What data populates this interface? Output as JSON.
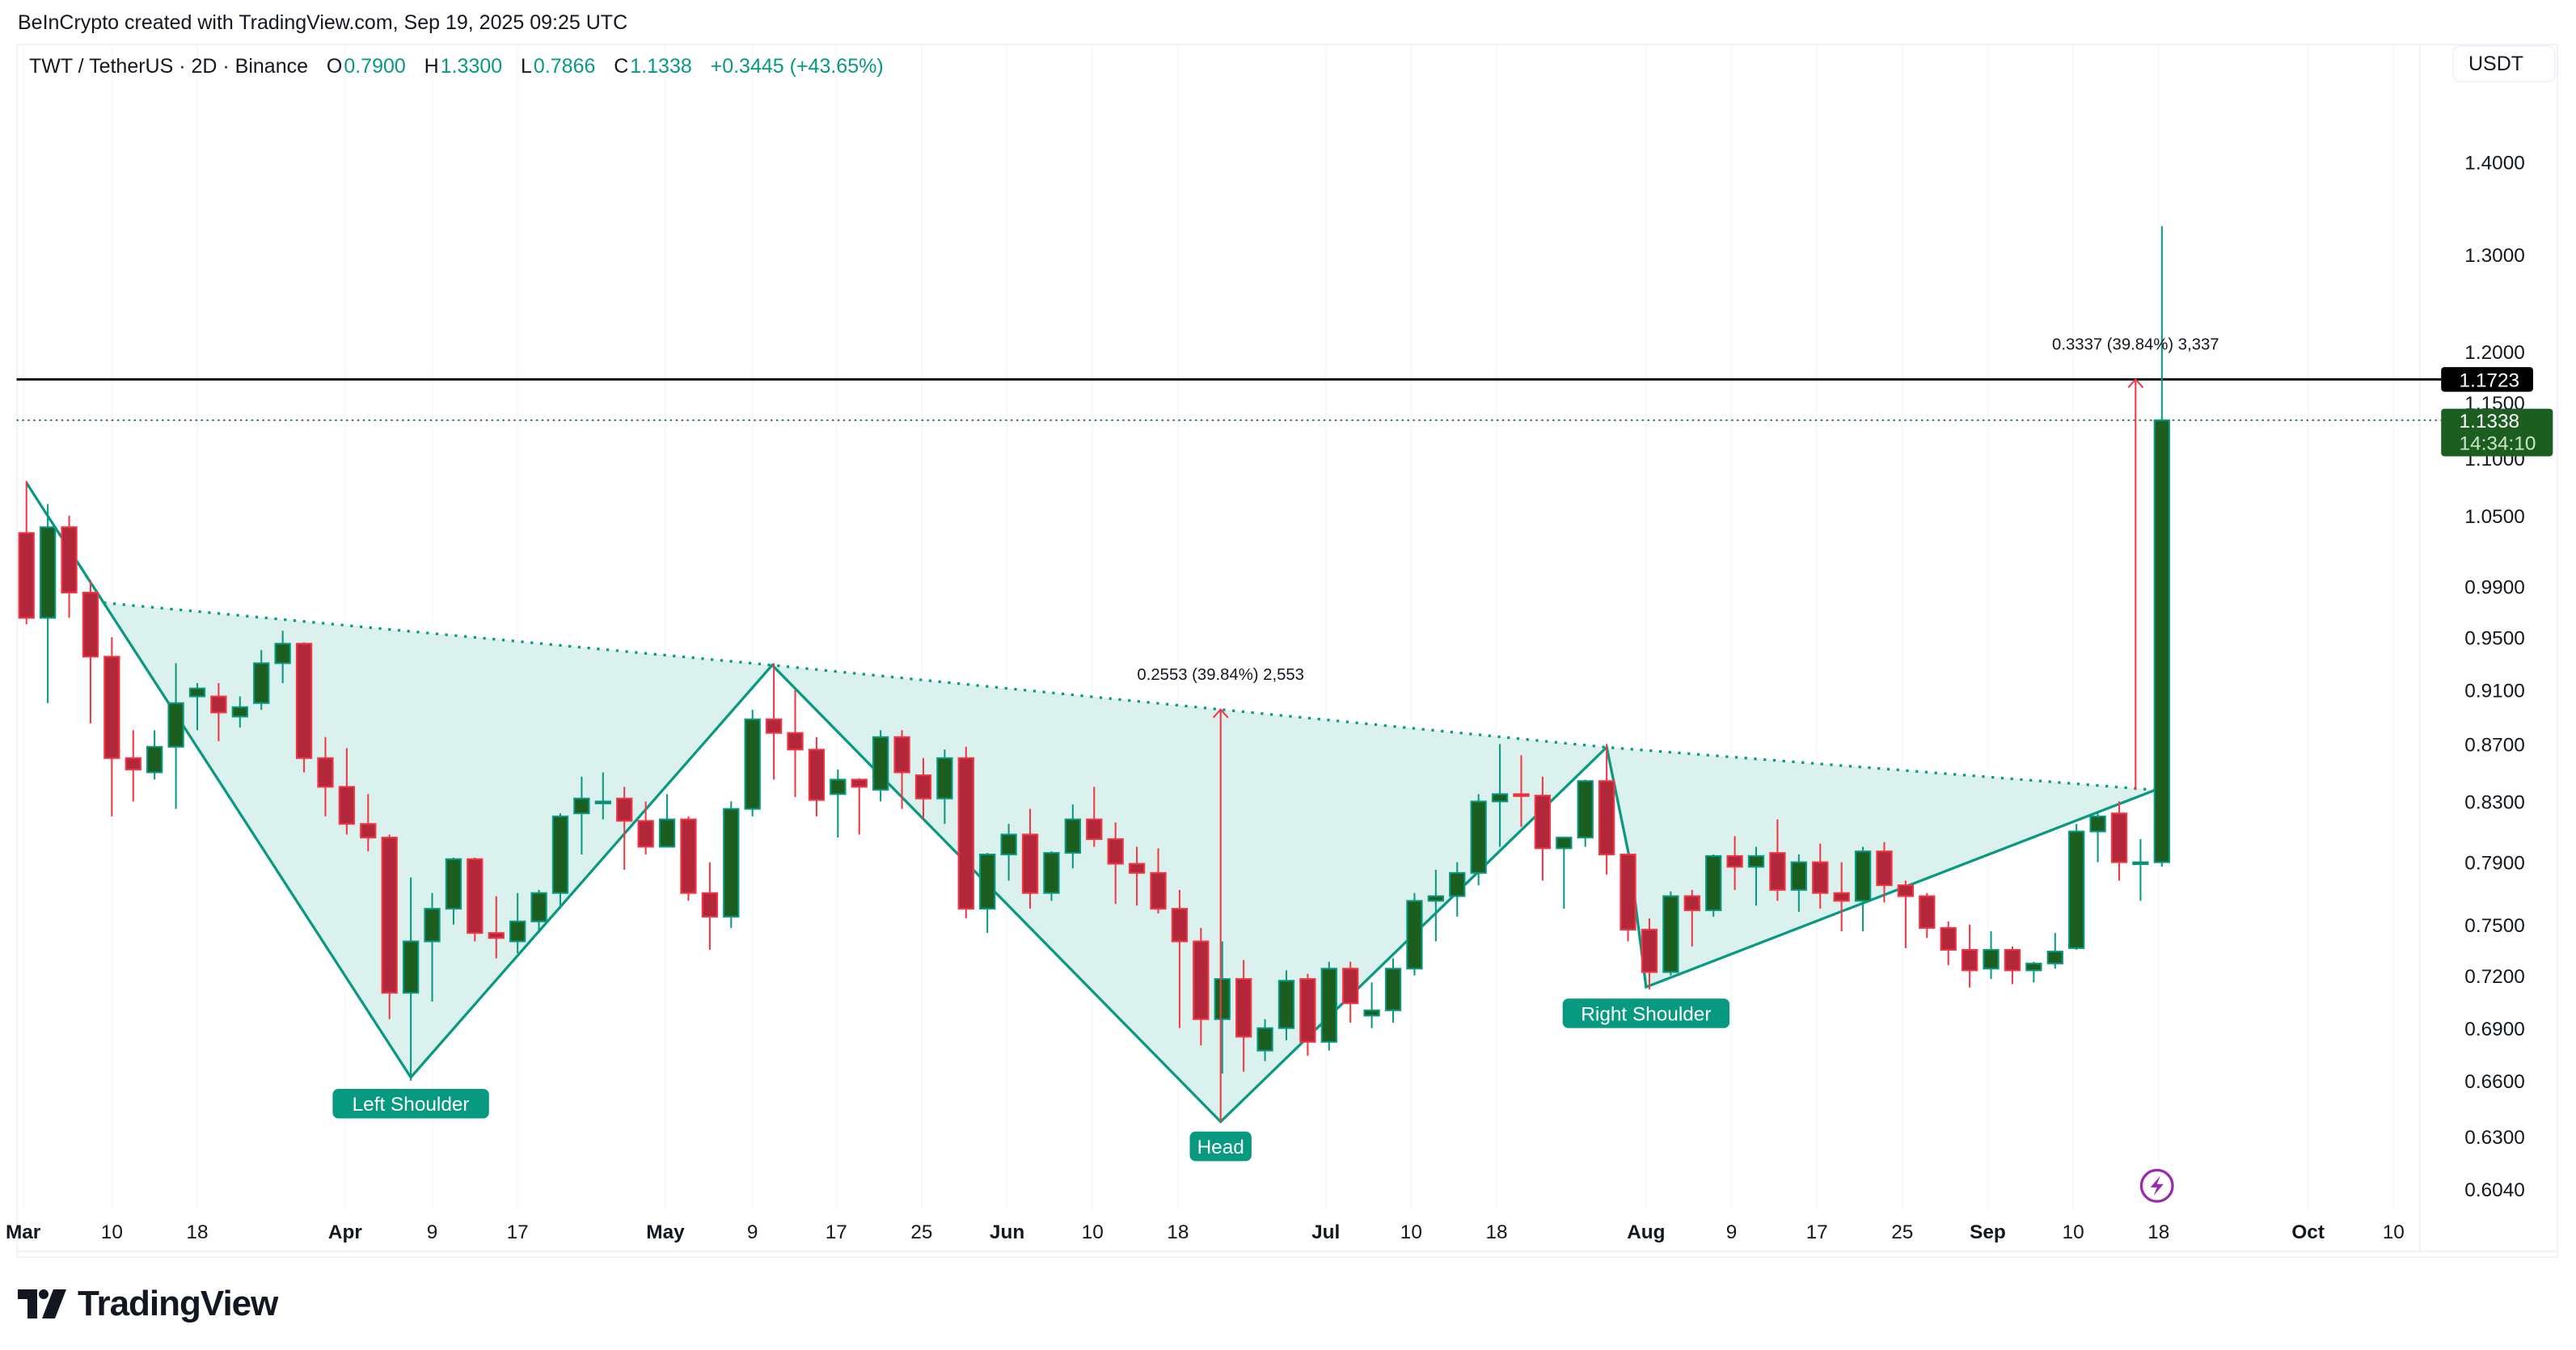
{
  "attribution": "BeInCrypto created with TradingView.com, Sep 19, 2025 09:25 UTC",
  "legend": {
    "symbol": "TWT / TetherUS · 2D · Binance",
    "o_label": "O",
    "o": "0.7900",
    "h_label": "H",
    "h": "1.3300",
    "l_label": "L",
    "l": "0.7866",
    "c_label": "C",
    "c": "1.1338",
    "change": "+0.3445 (+43.65%)"
  },
  "currency_button": "USDT",
  "logo": {
    "text": "TradingView"
  },
  "colors": {
    "up_body": "#1b5e20",
    "up_border": "#089981",
    "down_body": "#b2283a",
    "down_border": "#f23645",
    "pattern_fill": "#d9f0ec",
    "pattern_line": "#089981",
    "measure": "#f23645",
    "resistance": "#000000",
    "price_badge": "#1b5e20",
    "lightning": "#9c27b0"
  },
  "price_badges": {
    "resistance": "1.1723",
    "last_price": "1.1338",
    "countdown": "14:34:10"
  },
  "annotations": {
    "left_shoulder": "Left Shoulder",
    "head": "Head",
    "right_shoulder": "Right Shoulder",
    "measure_1": "0.2553 (39.84%) 2,553",
    "measure_2": "0.3337 (39.84%) 3,337"
  },
  "chart_data": {
    "type": "candlestick",
    "title": "TWT / TetherUS · 2D · Binance",
    "xlabel": "",
    "ylabel": "USDT",
    "y_scale": "log",
    "ylim": [
      0.59,
      1.45
    ],
    "y_ticks": [
      {
        "v": 1.4,
        "label": "1.4000",
        "y": 98.5
      },
      {
        "v": 1.3,
        "label": "1.3000",
        "y": 155
      },
      {
        "v": 1.2,
        "label": "1.2000",
        "y": 214
      },
      {
        "v": 1.15,
        "label": "1.1500",
        "y": 245
      },
      {
        "v": 1.1,
        "label": "1.1000",
        "y": 279
      },
      {
        "v": 1.05,
        "label": "1.0500",
        "y": 314
      },
      {
        "v": 0.99,
        "label": "0.9900",
        "y": 357
      },
      {
        "v": 0.95,
        "label": "0.9500",
        "y": 388
      },
      {
        "v": 0.91,
        "label": "0.9100",
        "y": 420
      },
      {
        "v": 0.87,
        "label": "0.8700",
        "y": 453
      },
      {
        "v": 0.83,
        "label": "0.8300",
        "y": 488
      },
      {
        "v": 0.79,
        "label": "0.7900",
        "y": 525
      },
      {
        "v": 0.75,
        "label": "0.7500",
        "y": 563
      },
      {
        "v": 0.72,
        "label": "0.7200",
        "y": 594
      },
      {
        "v": 0.69,
        "label": "0.6900",
        "y": 626
      },
      {
        "v": 0.66,
        "label": "0.6600",
        "y": 658
      },
      {
        "v": 0.63,
        "label": "0.6300",
        "y": 692
      },
      {
        "v": 0.604,
        "label": "0.6040",
        "y": 724
      }
    ],
    "x_ticks": [
      {
        "label": "Mar",
        "x": 14,
        "bold": true
      },
      {
        "label": "10",
        "x": 68
      },
      {
        "label": "18",
        "x": 120
      },
      {
        "label": "Apr",
        "x": 210,
        "bold": true
      },
      {
        "label": "9",
        "x": 263
      },
      {
        "label": "17",
        "x": 315
      },
      {
        "label": "May",
        "x": 405,
        "bold": true
      },
      {
        "label": "9",
        "x": 458
      },
      {
        "label": "17",
        "x": 509
      },
      {
        "label": "25",
        "x": 561
      },
      {
        "label": "Jun",
        "x": 613,
        "bold": true
      },
      {
        "label": "10",
        "x": 665
      },
      {
        "label": "18",
        "x": 717
      },
      {
        "label": "Jul",
        "x": 807,
        "bold": true
      },
      {
        "label": "10",
        "x": 859
      },
      {
        "label": "18",
        "x": 911
      },
      {
        "label": "Aug",
        "x": 1002,
        "bold": true
      },
      {
        "label": "9",
        "x": 1054
      },
      {
        "label": "17",
        "x": 1106
      },
      {
        "label": "25",
        "x": 1158
      },
      {
        "label": "Sep",
        "x": 1210,
        "bold": true
      },
      {
        "label": "10",
        "x": 1262
      },
      {
        "label": "18",
        "x": 1314
      },
      {
        "label": "Oct",
        "x": 1405,
        "bold": true
      },
      {
        "label": "10",
        "x": 1457
      }
    ],
    "candles": [
      {
        "x": 16,
        "o": 1.035,
        "h": 1.08,
        "l": 0.96,
        "c": 0.965
      },
      {
        "x": 29,
        "o": 0.965,
        "h": 1.06,
        "l": 0.9,
        "c": 1.04
      },
      {
        "x": 42,
        "o": 1.04,
        "h": 1.05,
        "l": 0.965,
        "c": 0.985
      },
      {
        "x": 55,
        "o": 0.985,
        "h": 0.995,
        "l": 0.885,
        "c": 0.935
      },
      {
        "x": 68,
        "o": 0.935,
        "h": 0.95,
        "l": 0.82,
        "c": 0.86
      },
      {
        "x": 81,
        "o": 0.86,
        "h": 0.88,
        "l": 0.83,
        "c": 0.852
      },
      {
        "x": 94,
        "o": 0.85,
        "h": 0.88,
        "l": 0.845,
        "c": 0.868
      },
      {
        "x": 107,
        "o": 0.868,
        "h": 0.93,
        "l": 0.825,
        "c": 0.9
      },
      {
        "x": 120,
        "o": 0.905,
        "h": 0.915,
        "l": 0.88,
        "c": 0.911
      },
      {
        "x": 133,
        "o": 0.905,
        "h": 0.915,
        "l": 0.872,
        "c": 0.893
      },
      {
        "x": 146,
        "o": 0.89,
        "h": 0.905,
        "l": 0.882,
        "c": 0.897
      },
      {
        "x": 159,
        "o": 0.9,
        "h": 0.94,
        "l": 0.895,
        "c": 0.93
      },
      {
        "x": 172,
        "o": 0.93,
        "h": 0.955,
        "l": 0.915,
        "c": 0.945
      },
      {
        "x": 185,
        "o": 0.945,
        "h": 0.946,
        "l": 0.85,
        "c": 0.86
      },
      {
        "x": 198,
        "o": 0.86,
        "h": 0.875,
        "l": 0.82,
        "c": 0.84
      },
      {
        "x": 211,
        "o": 0.84,
        "h": 0.867,
        "l": 0.808,
        "c": 0.815
      },
      {
        "x": 224,
        "o": 0.815,
        "h": 0.835,
        "l": 0.797,
        "c": 0.806
      },
      {
        "x": 237,
        "o": 0.806,
        "h": 0.808,
        "l": 0.695,
        "c": 0.71
      },
      {
        "x": 250,
        "o": 0.71,
        "h": 0.78,
        "l": 0.66,
        "c": 0.74
      },
      {
        "x": 263,
        "o": 0.74,
        "h": 0.77,
        "l": 0.705,
        "c": 0.76
      },
      {
        "x": 276,
        "o": 0.76,
        "h": 0.793,
        "l": 0.75,
        "c": 0.792
      },
      {
        "x": 289,
        "o": 0.792,
        "h": 0.793,
        "l": 0.74,
        "c": 0.745
      },
      {
        "x": 302,
        "o": 0.745,
        "h": 0.768,
        "l": 0.73,
        "c": 0.742
      },
      {
        "x": 315,
        "o": 0.74,
        "h": 0.77,
        "l": 0.733,
        "c": 0.752
      },
      {
        "x": 328,
        "o": 0.752,
        "h": 0.772,
        "l": 0.745,
        "c": 0.77
      },
      {
        "x": 341,
        "o": 0.77,
        "h": 0.822,
        "l": 0.76,
        "c": 0.82
      },
      {
        "x": 354,
        "o": 0.822,
        "h": 0.847,
        "l": 0.795,
        "c": 0.832
      },
      {
        "x": 367,
        "o": 0.83,
        "h": 0.85,
        "l": 0.818,
        "c": 0.83
      },
      {
        "x": 380,
        "o": 0.832,
        "h": 0.84,
        "l": 0.785,
        "c": 0.817
      },
      {
        "x": 393,
        "o": 0.817,
        "h": 0.83,
        "l": 0.795,
        "c": 0.8
      },
      {
        "x": 406,
        "o": 0.8,
        "h": 0.835,
        "l": 0.8,
        "c": 0.818
      },
      {
        "x": 419,
        "o": 0.818,
        "h": 0.82,
        "l": 0.765,
        "c": 0.77
      },
      {
        "x": 432,
        "o": 0.77,
        "h": 0.79,
        "l": 0.735,
        "c": 0.755
      },
      {
        "x": 445,
        "o": 0.755,
        "h": 0.83,
        "l": 0.748,
        "c": 0.825
      },
      {
        "x": 458,
        "o": 0.825,
        "h": 0.895,
        "l": 0.82,
        "c": 0.888
      },
      {
        "x": 471,
        "o": 0.888,
        "h": 0.93,
        "l": 0.845,
        "c": 0.878
      },
      {
        "x": 484,
        "o": 0.878,
        "h": 0.91,
        "l": 0.833,
        "c": 0.866
      },
      {
        "x": 497,
        "o": 0.866,
        "h": 0.875,
        "l": 0.82,
        "c": 0.831
      },
      {
        "x": 510,
        "o": 0.835,
        "h": 0.852,
        "l": 0.806,
        "c": 0.845
      },
      {
        "x": 523,
        "o": 0.845,
        "h": 0.846,
        "l": 0.808,
        "c": 0.84
      },
      {
        "x": 536,
        "o": 0.838,
        "h": 0.88,
        "l": 0.83,
        "c": 0.875
      },
      {
        "x": 549,
        "o": 0.875,
        "h": 0.88,
        "l": 0.825,
        "c": 0.85
      },
      {
        "x": 562,
        "o": 0.848,
        "h": 0.86,
        "l": 0.818,
        "c": 0.832
      },
      {
        "x": 575,
        "o": 0.832,
        "h": 0.866,
        "l": 0.815,
        "c": 0.86
      },
      {
        "x": 588,
        "o": 0.86,
        "h": 0.868,
        "l": 0.754,
        "c": 0.76
      },
      {
        "x": 601,
        "o": 0.76,
        "h": 0.796,
        "l": 0.745,
        "c": 0.795
      },
      {
        "x": 614,
        "o": 0.795,
        "h": 0.815,
        "l": 0.778,
        "c": 0.808
      },
      {
        "x": 627,
        "o": 0.808,
        "h": 0.825,
        "l": 0.76,
        "c": 0.77
      },
      {
        "x": 640,
        "o": 0.77,
        "h": 0.797,
        "l": 0.765,
        "c": 0.796
      },
      {
        "x": 653,
        "o": 0.796,
        "h": 0.828,
        "l": 0.786,
        "c": 0.818
      },
      {
        "x": 666,
        "o": 0.818,
        "h": 0.84,
        "l": 0.8,
        "c": 0.805
      },
      {
        "x": 679,
        "o": 0.805,
        "h": 0.816,
        "l": 0.763,
        "c": 0.789
      },
      {
        "x": 692,
        "o": 0.789,
        "h": 0.8,
        "l": 0.762,
        "c": 0.783
      },
      {
        "x": 705,
        "o": 0.783,
        "h": 0.799,
        "l": 0.757,
        "c": 0.76
      },
      {
        "x": 718,
        "o": 0.76,
        "h": 0.772,
        "l": 0.69,
        "c": 0.74
      },
      {
        "x": 731,
        "o": 0.74,
        "h": 0.748,
        "l": 0.68,
        "c": 0.695
      },
      {
        "x": 744,
        "o": 0.695,
        "h": 0.74,
        "l": 0.664,
        "c": 0.718
      },
      {
        "x": 757,
        "o": 0.718,
        "h": 0.729,
        "l": 0.665,
        "c": 0.685
      },
      {
        "x": 770,
        "o": 0.677,
        "h": 0.695,
        "l": 0.671,
        "c": 0.69
      },
      {
        "x": 783,
        "o": 0.69,
        "h": 0.723,
        "l": 0.683,
        "c": 0.717
      },
      {
        "x": 796,
        "o": 0.718,
        "h": 0.721,
        "l": 0.674,
        "c": 0.682
      },
      {
        "x": 809,
        "o": 0.682,
        "h": 0.728,
        "l": 0.677,
        "c": 0.724
      },
      {
        "x": 822,
        "o": 0.724,
        "h": 0.728,
        "l": 0.693,
        "c": 0.704
      },
      {
        "x": 835,
        "o": 0.697,
        "h": 0.716,
        "l": 0.69,
        "c": 0.7
      },
      {
        "x": 848,
        "o": 0.7,
        "h": 0.73,
        "l": 0.693,
        "c": 0.724
      },
      {
        "x": 861,
        "o": 0.724,
        "h": 0.77,
        "l": 0.72,
        "c": 0.765
      },
      {
        "x": 874,
        "o": 0.765,
        "h": 0.785,
        "l": 0.74,
        "c": 0.768
      },
      {
        "x": 887,
        "o": 0.768,
        "h": 0.79,
        "l": 0.755,
        "c": 0.783
      },
      {
        "x": 900,
        "o": 0.783,
        "h": 0.835,
        "l": 0.775,
        "c": 0.83
      },
      {
        "x": 913,
        "o": 0.83,
        "h": 0.87,
        "l": 0.8,
        "c": 0.835
      },
      {
        "x": 926,
        "o": 0.835,
        "h": 0.862,
        "l": 0.813,
        "c": 0.834
      },
      {
        "x": 939,
        "o": 0.834,
        "h": 0.847,
        "l": 0.778,
        "c": 0.799
      },
      {
        "x": 952,
        "o": 0.799,
        "h": 0.806,
        "l": 0.76,
        "c": 0.806
      },
      {
        "x": 965,
        "o": 0.806,
        "h": 0.845,
        "l": 0.8,
        "c": 0.844
      },
      {
        "x": 978,
        "o": 0.844,
        "h": 0.87,
        "l": 0.782,
        "c": 0.795
      },
      {
        "x": 991,
        "o": 0.795,
        "h": 0.796,
        "l": 0.74,
        "c": 0.747
      },
      {
        "x": 1004,
        "o": 0.747,
        "h": 0.754,
        "l": 0.712,
        "c": 0.722
      },
      {
        "x": 1017,
        "o": 0.722,
        "h": 0.771,
        "l": 0.72,
        "c": 0.768
      },
      {
        "x": 1030,
        "o": 0.768,
        "h": 0.772,
        "l": 0.737,
        "c": 0.759
      },
      {
        "x": 1043,
        "o": 0.759,
        "h": 0.795,
        "l": 0.755,
        "c": 0.794
      },
      {
        "x": 1056,
        "o": 0.794,
        "h": 0.807,
        "l": 0.772,
        "c": 0.787
      },
      {
        "x": 1069,
        "o": 0.787,
        "h": 0.8,
        "l": 0.762,
        "c": 0.794
      },
      {
        "x": 1082,
        "o": 0.796,
        "h": 0.818,
        "l": 0.765,
        "c": 0.772
      },
      {
        "x": 1095,
        "o": 0.772,
        "h": 0.795,
        "l": 0.758,
        "c": 0.79
      },
      {
        "x": 1108,
        "o": 0.79,
        "h": 0.802,
        "l": 0.76,
        "c": 0.77
      },
      {
        "x": 1121,
        "o": 0.77,
        "h": 0.79,
        "l": 0.746,
        "c": 0.765
      },
      {
        "x": 1134,
        "o": 0.765,
        "h": 0.8,
        "l": 0.746,
        "c": 0.797
      },
      {
        "x": 1147,
        "o": 0.797,
        "h": 0.803,
        "l": 0.764,
        "c": 0.775
      },
      {
        "x": 1160,
        "o": 0.775,
        "h": 0.778,
        "l": 0.736,
        "c": 0.768
      },
      {
        "x": 1173,
        "o": 0.768,
        "h": 0.77,
        "l": 0.742,
        "c": 0.748
      },
      {
        "x": 1186,
        "o": 0.748,
        "h": 0.752,
        "l": 0.726,
        "c": 0.735
      },
      {
        "x": 1199,
        "o": 0.735,
        "h": 0.75,
        "l": 0.713,
        "c": 0.723
      },
      {
        "x": 1212,
        "o": 0.724,
        "h": 0.746,
        "l": 0.718,
        "c": 0.735
      },
      {
        "x": 1225,
        "o": 0.735,
        "h": 0.737,
        "l": 0.715,
        "c": 0.723
      },
      {
        "x": 1238,
        "o": 0.723,
        "h": 0.728,
        "l": 0.716,
        "c": 0.727
      },
      {
        "x": 1251,
        "o": 0.727,
        "h": 0.745,
        "l": 0.724,
        "c": 0.734
      },
      {
        "x": 1264,
        "o": 0.736,
        "h": 0.815,
        "l": 0.735,
        "c": 0.81
      },
      {
        "x": 1277,
        "o": 0.81,
        "h": 0.822,
        "l": 0.79,
        "c": 0.82
      },
      {
        "x": 1290,
        "o": 0.822,
        "h": 0.83,
        "l": 0.778,
        "c": 0.79
      },
      {
        "x": 1303,
        "o": 0.79,
        "h": 0.805,
        "l": 0.765,
        "c": 0.79
      },
      {
        "x": 1316,
        "o": 0.79,
        "h": 1.33,
        "l": 0.787,
        "c": 1.1338
      }
    ],
    "pattern": {
      "outline_points": [
        [
          16,
          294
        ],
        [
          63,
          367
        ],
        [
          250,
          656
        ],
        [
          470,
          405
        ],
        [
          743,
          683
        ],
        [
          978,
          455
        ],
        [
          992,
          523
        ],
        [
          1002,
          601
        ],
        [
          1312,
          481
        ]
      ],
      "neckline_points": [
        [
          63,
          367
        ],
        [
          470,
          405
        ],
        [
          743,
          432
        ],
        [
          978,
          455
        ],
        [
          1312,
          481
        ]
      ]
    },
    "measurements": [
      {
        "label": "0.2553 (39.84%) 2,553",
        "x": 743,
        "y_from": 683,
        "y_to": 432
      },
      {
        "label": "0.3337 (39.84%) 3,337",
        "x": 1300,
        "y_from": 481,
        "y_to": 231
      }
    ],
    "lines": [
      {
        "type": "horizontal",
        "value": 1.1723,
        "label": "1.1723",
        "style": "solid"
      },
      {
        "type": "horizontal",
        "value": 1.1338,
        "label": "1.1338",
        "style": "dotted"
      }
    ]
  }
}
